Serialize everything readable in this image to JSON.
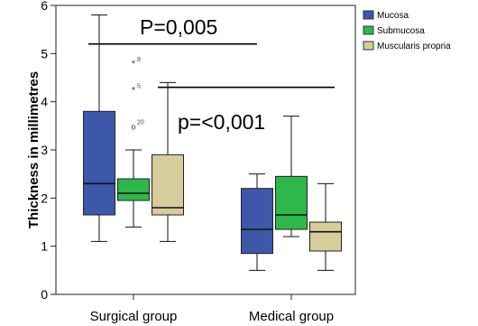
{
  "chart_data": {
    "type": "boxplot",
    "ylabel": "Thickness in millimetres",
    "ylim": [
      0,
      6
    ],
    "yticks": [
      0,
      1,
      2,
      3,
      4,
      5,
      6
    ],
    "grid": false,
    "legend_position": "top-right",
    "categories": [
      "Surgical group",
      "Medical group"
    ],
    "series": [
      {
        "name": "Mucosa",
        "color": "#3d58a8",
        "boxes": [
          {
            "min": 1.1,
            "q1": 1.65,
            "median": 2.3,
            "q3": 3.8,
            "max": 5.8,
            "outliers": []
          },
          {
            "min": 0.5,
            "q1": 0.85,
            "median": 1.35,
            "q3": 2.2,
            "max": 2.5,
            "outliers": []
          }
        ]
      },
      {
        "name": "Submucosa",
        "color": "#2eb84a",
        "boxes": [
          {
            "min": 1.4,
            "q1": 1.95,
            "median": 2.1,
            "q3": 2.4,
            "max": 3.0,
            "outliers": [
              {
                "value": 4.8,
                "marker": "*",
                "label": "8"
              },
              {
                "value": 4.25,
                "marker": "*",
                "label": "5"
              },
              {
                "value": 3.5,
                "marker": "o",
                "label": "20"
              }
            ]
          },
          {
            "min": 1.2,
            "q1": 1.35,
            "median": 1.65,
            "q3": 2.45,
            "max": 3.7,
            "outliers": []
          }
        ]
      },
      {
        "name": "Muscularis propria",
        "color": "#d6cc9c",
        "boxes": [
          {
            "min": 1.1,
            "q1": 1.65,
            "median": 1.8,
            "q3": 2.9,
            "max": 4.4,
            "outliers": []
          },
          {
            "min": 0.5,
            "q1": 0.9,
            "median": 1.3,
            "q3": 1.5,
            "max": 2.3,
            "outliers": []
          }
        ]
      }
    ],
    "annotations": [
      {
        "text": "P=0,005",
        "line_y": 5.2
      },
      {
        "text": "p=<0,001",
        "line_y": 4.3
      }
    ]
  }
}
